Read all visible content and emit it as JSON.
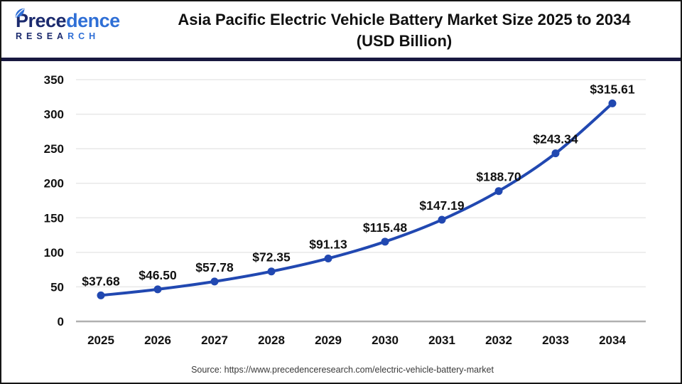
{
  "logo": {
    "word_dark": "Prece",
    "word_light": "dence",
    "sub_dark": "RESEA",
    "sub_light": "RCH",
    "leaf_color_dark": "#1b2a6e",
    "leaf_color_light": "#2f6fd6"
  },
  "title": {
    "line1": "Asia Pacific Electric Vehicle Battery Market Size 2025 to 2034",
    "line2": "(USD Billion)"
  },
  "chart_data": {
    "type": "line",
    "title": "Asia Pacific Electric Vehicle Battery Market Size 2025 to 2034 (USD Billion)",
    "categories": [
      "2025",
      "2026",
      "2027",
      "2028",
      "2029",
      "2030",
      "2031",
      "2032",
      "2033",
      "2034"
    ],
    "values": [
      37.68,
      46.5,
      57.78,
      72.35,
      91.13,
      115.48,
      147.19,
      188.7,
      243.34,
      315.61
    ],
    "point_labels": [
      "$37.68",
      "$46.50",
      "$57.78",
      "$72.35",
      "$91.13",
      "$115.48",
      "$147.19",
      "$188.70",
      "$243.34",
      "$315.61"
    ],
    "y_ticks": [
      0,
      50,
      100,
      150,
      200,
      250,
      300,
      350
    ],
    "ylim": [
      0,
      350
    ],
    "xlabel": "",
    "ylabel": "",
    "grid": true,
    "legend": "none",
    "line_color": "#2148b1",
    "marker_color": "#2148b1",
    "grid_color": "#e8e8e8",
    "axis_color": "#b0b0b0",
    "label_color": "#111111"
  },
  "source": {
    "text": "Source: https://www.precedenceresearch.com/electric-vehicle-battery-market"
  }
}
